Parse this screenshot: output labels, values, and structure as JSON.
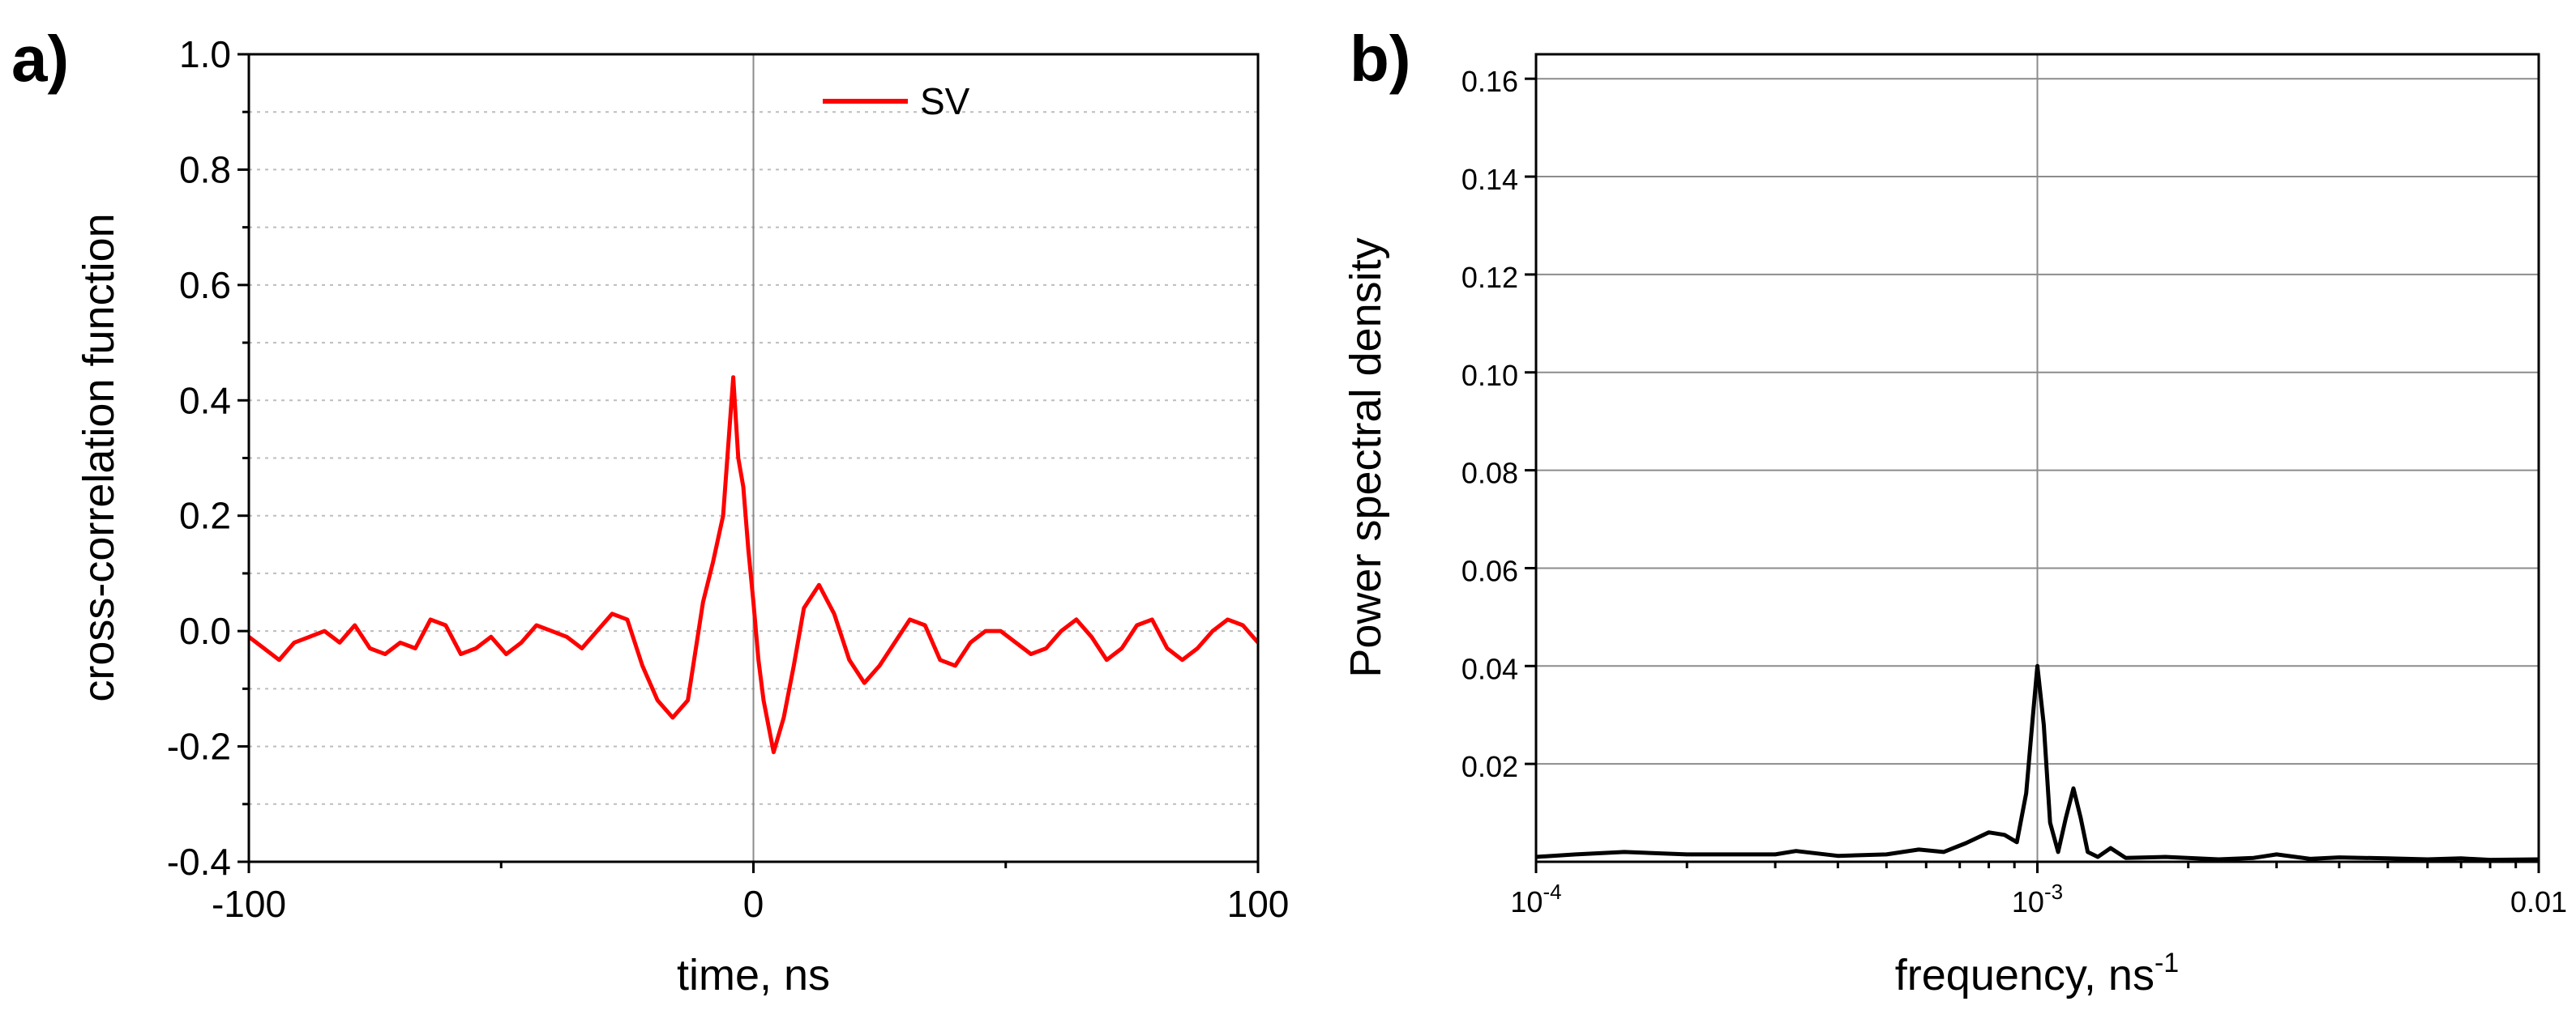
{
  "chart_data": [
    {
      "panel_label": "a)",
      "type": "line",
      "title": "",
      "xlabel": "time, ns",
      "ylabel": "cross-correlation function",
      "xlim": [
        -100,
        100
      ],
      "ylim": [
        -0.4,
        1.0
      ],
      "xticks": [
        -100,
        0,
        100
      ],
      "xtick_labels": [
        "-100",
        "0",
        "100"
      ],
      "yticks": [
        -0.4,
        -0.2,
        0.0,
        0.2,
        0.4,
        0.6,
        0.8,
        1.0
      ],
      "ytick_labels": [
        "-0.4",
        "-0.2",
        "0.0",
        "0.2",
        "0.4",
        "0.6",
        "0.8",
        "1.0"
      ],
      "grid": "horizontal dotted, vertical line at x=0",
      "legend": {
        "position": "top-center",
        "entries": [
          {
            "label": "SV",
            "color": "#ff0000"
          }
        ]
      },
      "series": [
        {
          "name": "SV",
          "color": "#ff0000",
          "x": [
            -100,
            -97,
            -94,
            -91,
            -88,
            -85,
            -82,
            -79,
            -76,
            -73,
            -70,
            -67,
            -64,
            -61,
            -58,
            -55,
            -52,
            -49,
            -46,
            -43,
            -40,
            -37,
            -34,
            -31,
            -28,
            -25,
            -22,
            -19,
            -16,
            -13,
            -10,
            -8,
            -6,
            -4,
            -3,
            -2,
            -1,
            0,
            1,
            2,
            4,
            6,
            8,
            10,
            13,
            16,
            19,
            22,
            25,
            28,
            31,
            34,
            37,
            40,
            43,
            46,
            49,
            52,
            55,
            58,
            61,
            64,
            67,
            70,
            73,
            76,
            79,
            82,
            85,
            88,
            91,
            94,
            97,
            100
          ],
          "y": [
            -0.01,
            -0.03,
            -0.05,
            -0.02,
            -0.01,
            0.0,
            -0.02,
            0.01,
            -0.03,
            -0.04,
            -0.02,
            -0.03,
            0.02,
            0.01,
            -0.04,
            -0.03,
            -0.01,
            -0.04,
            -0.02,
            0.01,
            0.0,
            -0.01,
            -0.03,
            0.0,
            0.03,
            0.02,
            -0.06,
            -0.12,
            -0.15,
            -0.12,
            0.05,
            0.12,
            0.2,
            0.44,
            0.3,
            0.25,
            0.14,
            0.05,
            -0.05,
            -0.12,
            -0.21,
            -0.15,
            -0.06,
            0.04,
            0.08,
            0.03,
            -0.05,
            -0.09,
            -0.06,
            -0.02,
            0.02,
            0.01,
            -0.05,
            -0.06,
            -0.02,
            0.0,
            0.0,
            -0.02,
            -0.04,
            -0.03,
            0.0,
            0.02,
            -0.01,
            -0.05,
            -0.03,
            0.01,
            0.02,
            -0.03,
            -0.05,
            -0.03,
            0.0,
            0.02,
            0.01,
            -0.02
          ]
        }
      ]
    },
    {
      "panel_label": "b)",
      "type": "line",
      "title": "",
      "xlabel": "frequency, ns",
      "xlabel_superscript": "-1",
      "ylabel": "Power spectral density",
      "xscale": "log",
      "xlim": [
        0.0001,
        0.01
      ],
      "ylim": [
        0.0,
        0.165
      ],
      "xticks": [
        0.0001,
        0.001,
        0.01
      ],
      "xtick_labels": [
        {
          "base": "10",
          "exp": "-4"
        },
        {
          "base": "10",
          "exp": "-3"
        },
        {
          "base": "",
          "exp": "",
          "text": "0.01"
        }
      ],
      "yticks": [
        0.02,
        0.04,
        0.06,
        0.08,
        0.1,
        0.12,
        0.14,
        0.16
      ],
      "ytick_labels": [
        "0.02",
        "0.04",
        "0.06",
        "0.08",
        "0.10",
        "0.12",
        "0.14",
        "0.16"
      ],
      "grid": "horizontal solid lines, vertical line at x=1e-3",
      "legend": null,
      "series": [
        {
          "name": "PSD",
          "color": "#000000",
          "x": [
            0.0001,
            0.00012,
            0.00015,
            0.0002,
            0.00025,
            0.0003,
            0.00033,
            0.0004,
            0.0005,
            0.00058,
            0.00065,
            0.00072,
            0.0008,
            0.00086,
            0.00091,
            0.00095,
            0.00098,
            0.001,
            0.00103,
            0.00106,
            0.0011,
            0.00114,
            0.00118,
            0.00122,
            0.00126,
            0.00132,
            0.0014,
            0.0015,
            0.0018,
            0.0023,
            0.0027,
            0.003,
            0.0035,
            0.004,
            0.005,
            0.006,
            0.007,
            0.008,
            0.01
          ],
          "y": [
            0.001,
            0.0015,
            0.002,
            0.0015,
            0.0015,
            0.0015,
            0.0022,
            0.0012,
            0.0015,
            0.0025,
            0.002,
            0.0038,
            0.006,
            0.0055,
            0.004,
            0.014,
            0.03,
            0.04,
            0.028,
            0.008,
            0.002,
            0.009,
            0.015,
            0.009,
            0.002,
            0.001,
            0.0028,
            0.0008,
            0.001,
            0.0005,
            0.0008,
            0.0015,
            0.0006,
            0.0009,
            0.0007,
            0.0005,
            0.0007,
            0.0004,
            0.0005
          ]
        }
      ]
    }
  ]
}
